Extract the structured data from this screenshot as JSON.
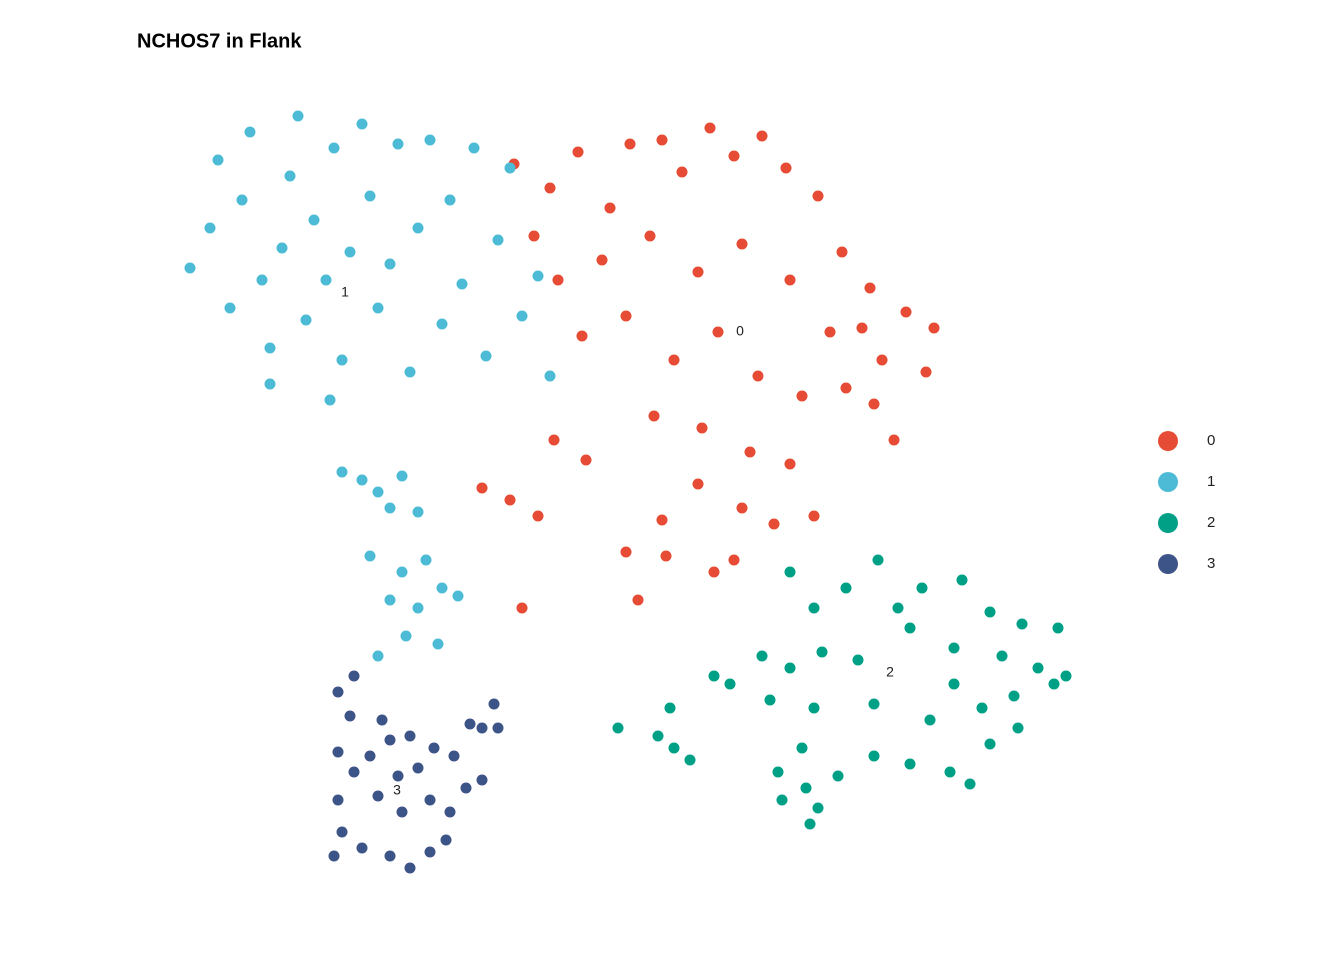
{
  "chart_data": {
    "type": "scatter",
    "title": "NCHOS7 in Flank",
    "xlim": [
      0,
      23
    ],
    "ylim": [
      0,
      20
    ],
    "legend": "right",
    "series": [
      {
        "name": "0",
        "color": "#E64B35",
        "label_x": 14.25,
        "label_y": 14.2,
        "x": [
          8.6,
          9.5,
          10.2,
          11,
          11.5,
          12.3,
          12.8,
          13.5,
          14.1,
          14.8,
          15.4,
          16.2,
          16.8,
          17.5,
          18.4,
          19.1,
          18.9,
          17.8,
          16.5,
          15.5,
          14.3,
          13.2,
          12,
          10.8,
          9.7,
          9.1,
          10.3,
          11.4,
          12.6,
          13.7,
          14.7,
          15.8,
          16.9,
          17.6,
          12.1,
          13.3,
          14.5,
          15.5,
          9.6,
          10.4,
          8.5,
          9.2,
          11.4,
          12.3,
          13.2,
          14.3,
          15.1,
          16.1,
          12.4,
          13.6,
          11.7,
          14.1,
          8.8,
          7.8,
          17.3,
          18.1
        ],
        "y": [
          18.4,
          17.8,
          18.7,
          17.3,
          18.9,
          19,
          18.2,
          19.3,
          18.6,
          19.1,
          18.3,
          17.6,
          16.2,
          15.3,
          14.7,
          14.3,
          13.2,
          13.5,
          14.2,
          15.5,
          16.4,
          15.7,
          16.6,
          16,
          15.5,
          16.6,
          14.1,
          14.6,
          13.5,
          14.2,
          13.1,
          12.6,
          12.8,
          12.4,
          12.1,
          11.8,
          11.2,
          10.9,
          11.5,
          11,
          10,
          9.6,
          8.7,
          9.5,
          10.4,
          9.8,
          9.4,
          9.6,
          8.6,
          8.2,
          7.5,
          8.5,
          7.3,
          10.3,
          14.3,
          11.5
        ]
      },
      {
        "name": "1",
        "color": "#4DBBD5",
        "label_x": 4.375,
        "label_y": 15.175,
        "x": [
          0.5,
          1,
          1.2,
          1.5,
          1.8,
          2,
          2.3,
          2.5,
          2.8,
          3,
          3.2,
          3.4,
          3.6,
          3.9,
          4.1,
          4.3,
          4.5,
          4.8,
          5,
          5.2,
          5.5,
          5.7,
          6,
          6.2,
          6.5,
          6.8,
          7,
          7.3,
          7.6,
          7.9,
          8.2,
          8.5,
          8.8,
          9.2,
          9.5,
          2.5,
          4,
          4.3,
          4.8,
          5.2,
          5.8,
          5.5,
          6.2,
          5,
          5.8,
          6.4,
          5.5,
          6.2,
          6.8,
          5.9,
          6.7,
          5.2,
          7.2
        ],
        "y": [
          15.8,
          16.8,
          18.5,
          14.8,
          17.5,
          19.2,
          15.5,
          13.8,
          16.3,
          18.1,
          19.6,
          14.5,
          17,
          15.5,
          18.8,
          13.5,
          16.2,
          19.4,
          17.6,
          14.8,
          15.9,
          18.9,
          13.2,
          16.8,
          19,
          14.4,
          17.5,
          15.4,
          18.8,
          13.6,
          16.5,
          18.3,
          14.6,
          15.6,
          13.1,
          12.9,
          12.5,
          10.7,
          10.5,
          10.2,
          10.6,
          9.8,
          9.7,
          8.6,
          8.2,
          8.5,
          7.5,
          7.3,
          7.8,
          6.6,
          6.4,
          6.1,
          7.6
        ]
      },
      {
        "name": "2",
        "color": "#00A087",
        "label_x": 18.0,
        "label_y": 5.675,
        "x": [
          15.5,
          16.1,
          16.9,
          17.7,
          18.8,
          19.8,
          20.5,
          21.3,
          22.2,
          22.4,
          21.7,
          20.8,
          19.6,
          18.5,
          17.2,
          16.3,
          15.5,
          14.8,
          15,
          16.1,
          17.6,
          19.6,
          20.3,
          21.1,
          22.1,
          21.2,
          20.5,
          19.5,
          18.5,
          17.6,
          15.8,
          15.2,
          15.9,
          16.2,
          16,
          15.3,
          16.7,
          12.5,
          12.2,
          12.6,
          13,
          11.2,
          13.6,
          14,
          18.2,
          19,
          20
        ],
        "y": [
          8.2,
          7.3,
          7.8,
          8.5,
          7.8,
          8,
          7.2,
          6.9,
          6.8,
          5.6,
          5.8,
          6.1,
          6.3,
          6.8,
          6,
          6.2,
          5.8,
          6.1,
          5,
          4.8,
          4.9,
          5.4,
          4.8,
          5.1,
          5.4,
          4.3,
          3.9,
          3.2,
          3.4,
          3.6,
          3.8,
          3.2,
          2.8,
          2.3,
          1.9,
          2.5,
          3.1,
          4.8,
          4.1,
          3.8,
          3.5,
          4.3,
          5.6,
          5.4,
          7.3,
          4.5,
          2.9
        ]
      },
      {
        "name": "3",
        "color": "#3C5488",
        "label_x": 5.675,
        "label_y": 2.725,
        "x": [
          4.2,
          4.5,
          4.2,
          4.6,
          4.2,
          4.3,
          4.1,
          4.8,
          5.5,
          6,
          6.5,
          6.9,
          7,
          6.5,
          5.8,
          5.2,
          5,
          5.5,
          6,
          6.6,
          7.1,
          7.4,
          7.8,
          7.8,
          8.1,
          8.2,
          7.5,
          5.3,
          6.2,
          5.7,
          4.6
        ],
        "y": [
          5.2,
          4.6,
          3.7,
          3.2,
          2.5,
          1.7,
          1.1,
          1.3,
          1.1,
          0.8,
          1.2,
          1.5,
          2.2,
          2.5,
          2.2,
          2.6,
          3.6,
          4,
          4.1,
          3.8,
          3.6,
          2.8,
          3,
          4.3,
          4.9,
          4.3,
          4.4,
          4.5,
          3.3,
          3.1,
          5.6
        ]
      }
    ]
  }
}
